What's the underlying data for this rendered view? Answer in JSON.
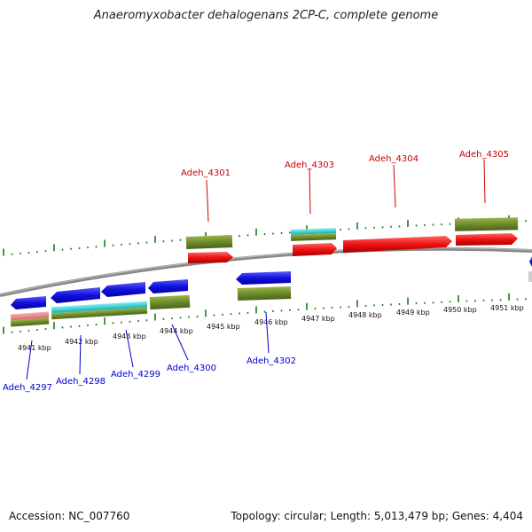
{
  "title": "Anaeromyxobacter dehalogenans 2CP-C, complete genome",
  "footer": {
    "accession": "Accession: NC_007760",
    "summary": "Topology: circular; Length: 5,013,479 bp; Genes: 4,404"
  },
  "colors": {
    "forward_label": "#cc0000",
    "reverse_label": "#0000cc",
    "cds_forward": "#ee1111",
    "cds_reverse": "#1111dd",
    "gene": "#6e8b2a",
    "rna": "#22cccc",
    "pseudo": "#e88888",
    "backbone": "#888888",
    "tick": "#1a7a1a"
  },
  "kbp_ticks": [
    "4941 kbp",
    "4942 kbp",
    "4943 kbp",
    "4944 kbp",
    "4945 kbp",
    "4946 kbp",
    "4947 kbp",
    "4948 kbp",
    "4949 kbp",
    "4950 kbp",
    "4951 kbp"
  ],
  "forward_genes": [
    {
      "label": "Adeh_4301",
      "strand": "forward"
    },
    {
      "label": "Adeh_4303",
      "strand": "forward"
    },
    {
      "label": "Adeh_4304",
      "strand": "forward"
    },
    {
      "label": "Adeh_4305",
      "strand": "forward"
    }
  ],
  "reverse_genes": [
    {
      "label": "Adeh_4297",
      "strand": "reverse"
    },
    {
      "label": "Adeh_4298",
      "strand": "reverse"
    },
    {
      "label": "Adeh_4299",
      "strand": "reverse"
    },
    {
      "label": "Adeh_4300",
      "strand": "reverse"
    },
    {
      "label": "Adeh_4302",
      "strand": "reverse"
    }
  ]
}
